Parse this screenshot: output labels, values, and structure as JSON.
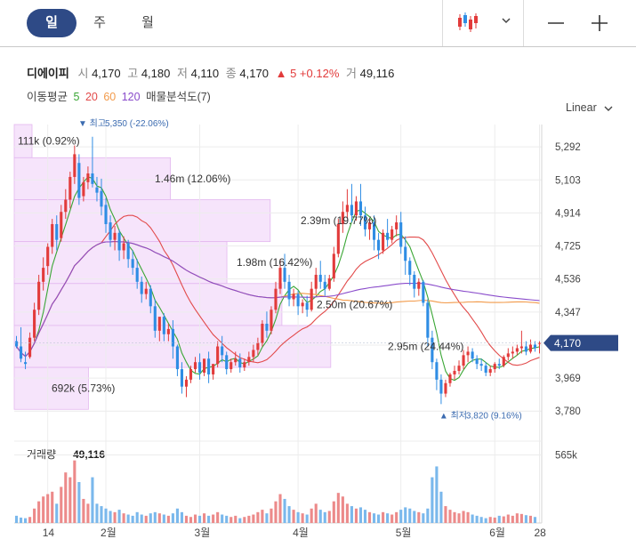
{
  "period_tabs": [
    {
      "label": "일",
      "active": true
    },
    {
      "label": "주",
      "active": false
    },
    {
      "label": "월",
      "active": false
    }
  ],
  "quote": {
    "name": "디에이피",
    "open_label": "시",
    "open": "4,170",
    "high_label": "고",
    "high": "4,180",
    "low_label": "저",
    "low": "4,110",
    "close_label": "종",
    "close": "4,170",
    "change_arrow": "▲",
    "change": "5",
    "change_pct": "+0.12%",
    "volume_label": "거",
    "volume": "49,116"
  },
  "indicators": {
    "ma_label": "이동평균",
    "ma_periods": [
      {
        "period": "5",
        "color": "#3aa635"
      },
      {
        "period": "20",
        "color": "#e24a4a"
      },
      {
        "period": "60",
        "color": "#f29a4a"
      },
      {
        "period": "120",
        "color": "#8a4ccb"
      }
    ],
    "volume_profile_label": "매물분석도(7)"
  },
  "scale_mode": "Linear",
  "colors": {
    "accent": "#2e4a86",
    "up": "#e23b3b",
    "down": "#2f8de4",
    "profile_fill": "#f6e4fb",
    "profile_stroke": "#e3b7ef",
    "vol_up": "#ec8a8a",
    "vol_down": "#7ab8ec"
  },
  "icons": {
    "chart_type": "candlestick-icon",
    "dropdown": "chevron-down-icon",
    "zoom_out": "minus-icon",
    "zoom_in": "plus-icon"
  },
  "chart_data": [
    {
      "type": "candlestick",
      "y_ticks": [
        "5,292",
        "5,103",
        "4,914",
        "4,725",
        "4,536",
        "4,347",
        "4,158",
        "3,969",
        "3,780"
      ],
      "ylim": [
        3720,
        5420
      ],
      "x_ticks": [
        "14",
        "2월",
        "3월",
        "4월",
        "5월",
        "6월",
        "28"
      ],
      "current_price": 4170,
      "current_price_label": "4,170",
      "max_marker": {
        "label": "▼ 최고",
        "value": "5,350 (-22.06%)",
        "price": 5350
      },
      "min_marker": {
        "label": "▲ 최저",
        "value": "3,820 (9.16%)",
        "price": 3820
      },
      "volume_profile": [
        {
          "label": "111k (0.92%)",
          "from": 5230,
          "to": 5420,
          "share": 0.92
        },
        {
          "label": "1.46m (12.06%)",
          "from": 4990,
          "to": 5230,
          "share": 12.06
        },
        {
          "label": "2.39m (19.77%)",
          "from": 4750,
          "to": 4990,
          "share": 19.77
        },
        {
          "label": "1.98m (16.42%)",
          "from": 4510,
          "to": 4750,
          "share": 16.42
        },
        {
          "label": "2.50m (20.67%)",
          "from": 4270,
          "to": 4510,
          "share": 20.67
        },
        {
          "label": "2.95m (24.44%)",
          "from": 4030,
          "to": 4270,
          "share": 24.44
        },
        {
          "label": "692k (5.73%)",
          "from": 3790,
          "to": 4030,
          "share": 5.73
        }
      ],
      "candles": [
        [
          4180,
          4210,
          4150,
          4140
        ],
        [
          4150,
          4260,
          4080,
          4060
        ],
        [
          4060,
          4120,
          4050,
          4020
        ],
        [
          4090,
          4230,
          4200,
          4080
        ],
        [
          4200,
          4400,
          4360,
          4180
        ],
        [
          4360,
          4560,
          4520,
          4330
        ],
        [
          4520,
          4660,
          4600,
          4470
        ],
        [
          4610,
          4740,
          4720,
          4560
        ],
        [
          4720,
          4880,
          4850,
          4680
        ],
        [
          4850,
          4900,
          4760,
          4700
        ],
        [
          4770,
          4960,
          4920,
          4750
        ],
        [
          4920,
          5050,
          4990,
          4880
        ],
        [
          4990,
          5150,
          5120,
          4940
        ],
        [
          5120,
          5300,
          5250,
          5080
        ],
        [
          5200,
          5250,
          5000,
          4960
        ],
        [
          5010,
          5120,
          5090,
          4980
        ],
        [
          5090,
          5180,
          5140,
          5050
        ],
        [
          5140,
          5350,
          5080,
          5060
        ],
        [
          5060,
          5120,
          5030,
          4980
        ],
        [
          5040,
          5110,
          4950,
          4900
        ],
        [
          4960,
          5000,
          4850,
          4800
        ],
        [
          4860,
          4900,
          4760,
          4720
        ],
        [
          4760,
          4840,
          4800,
          4700
        ],
        [
          4800,
          4820,
          4700,
          4640
        ],
        [
          4700,
          4780,
          4740,
          4650
        ],
        [
          4740,
          4760,
          4650,
          4600
        ],
        [
          4650,
          4700,
          4600,
          4560
        ],
        [
          4600,
          4650,
          4520,
          4480
        ],
        [
          4520,
          4550,
          4450,
          4400
        ],
        [
          4450,
          4520,
          4480,
          4420
        ],
        [
          4480,
          4500,
          4380,
          4340
        ],
        [
          4380,
          4420,
          4240,
          4200
        ],
        [
          4240,
          4300,
          4320,
          4180
        ],
        [
          4320,
          4340,
          4220,
          4180
        ],
        [
          4220,
          4280,
          4250,
          4180
        ],
        [
          4250,
          4300,
          4150,
          4080
        ],
        [
          4150,
          4160,
          4020,
          3980
        ],
        [
          4020,
          4060,
          3920,
          3880
        ],
        [
          3920,
          3980,
          3960,
          3860
        ],
        [
          3960,
          4040,
          4020,
          3940
        ],
        [
          4020,
          4090,
          4060,
          4000
        ],
        [
          4060,
          4110,
          4000,
          3960
        ],
        [
          4000,
          4040,
          4080,
          3980
        ],
        [
          4080,
          4120,
          3990,
          3940
        ],
        [
          3990,
          4020,
          4050,
          3960
        ],
        [
          4050,
          4180,
          4150,
          4030
        ],
        [
          4150,
          4210,
          4100,
          4060
        ],
        [
          4100,
          4120,
          4020,
          3990
        ],
        [
          4020,
          4080,
          4060,
          4000
        ],
        [
          4060,
          4120,
          4080,
          4040
        ],
        [
          4080,
          4110,
          4030,
          4000
        ],
        [
          4030,
          4080,
          4060,
          4010
        ],
        [
          4060,
          4120,
          4090,
          4040
        ],
        [
          4090,
          4160,
          4130,
          4060
        ],
        [
          4130,
          4200,
          4170,
          4100
        ],
        [
          4170,
          4300,
          4280,
          4150
        ],
        [
          4280,
          4350,
          4240,
          4200
        ],
        [
          4240,
          4380,
          4360,
          4220
        ],
        [
          4360,
          4520,
          4480,
          4340
        ],
        [
          4480,
          4650,
          4600,
          4450
        ],
        [
          4600,
          4680,
          4520,
          4480
        ],
        [
          4520,
          4560,
          4420,
          4380
        ],
        [
          4420,
          4480,
          4450,
          4380
        ],
        [
          4450,
          4470,
          4380,
          4330
        ],
        [
          4380,
          4420,
          4400,
          4340
        ],
        [
          4400,
          4440,
          4360,
          4320
        ],
        [
          4360,
          4520,
          4480,
          4350
        ],
        [
          4480,
          4600,
          4560,
          4450
        ],
        [
          4560,
          4640,
          4520,
          4480
        ],
        [
          4520,
          4560,
          4480,
          4440
        ],
        [
          4480,
          4560,
          4540,
          4470
        ],
        [
          4540,
          4720,
          4680,
          4520
        ],
        [
          4680,
          4880,
          4850,
          4660
        ],
        [
          4850,
          4980,
          4920,
          4800
        ],
        [
          4920,
          5050,
          4960,
          4880
        ],
        [
          4960,
          5080,
          4900,
          4860
        ],
        [
          4900,
          5010,
          4980,
          4870
        ],
        [
          4980,
          5080,
          4900,
          4840
        ],
        [
          4900,
          4950,
          4820,
          4780
        ],
        [
          4820,
          4880,
          4860,
          4760
        ],
        [
          4860,
          4900,
          4760,
          4700
        ],
        [
          4760,
          4800,
          4700,
          4650
        ],
        [
          4700,
          4820,
          4800,
          4680
        ],
        [
          4800,
          4880,
          4760,
          4720
        ],
        [
          4760,
          4840,
          4820,
          4740
        ],
        [
          4820,
          4900,
          4860,
          4780
        ],
        [
          4860,
          4920,
          4720,
          4680
        ],
        [
          4720,
          4780,
          4640,
          4560
        ],
        [
          4640,
          4660,
          4560,
          4500
        ],
        [
          4560,
          4580,
          4480,
          4430
        ],
        [
          4480,
          4540,
          4520,
          4440
        ],
        [
          4520,
          4530,
          4400,
          4380
        ],
        [
          4400,
          4420,
          4200,
          4150
        ],
        [
          4200,
          4240,
          4060,
          4020
        ],
        [
          4060,
          4080,
          3960,
          3900
        ],
        [
          3960,
          3990,
          3880,
          3820
        ],
        [
          3880,
          3960,
          3940,
          3860
        ],
        [
          3940,
          4000,
          3990,
          3920
        ],
        [
          3990,
          4040,
          4010,
          3960
        ],
        [
          4010,
          4070,
          4040,
          3990
        ],
        [
          4040,
          4130,
          4100,
          4020
        ],
        [
          4100,
          4150,
          4120,
          4060
        ],
        [
          4120,
          4140,
          4080,
          4060
        ],
        [
          4080,
          4100,
          4050,
          4020
        ],
        [
          4050,
          4080,
          4040,
          4010
        ],
        [
          4040,
          4060,
          4000,
          3980
        ],
        [
          4000,
          4040,
          4020,
          3980
        ],
        [
          4020,
          4060,
          4050,
          4000
        ],
        [
          4050,
          4080,
          4040,
          4020
        ],
        [
          4040,
          4100,
          4090,
          4030
        ],
        [
          4090,
          4140,
          4110,
          4070
        ],
        [
          4110,
          4150,
          4120,
          4080
        ],
        [
          4120,
          4160,
          4140,
          4100
        ],
        [
          4140,
          4240,
          4150,
          4110
        ],
        [
          4150,
          4180,
          4120,
          4100
        ],
        [
          4120,
          4190,
          4160,
          4110
        ],
        [
          4160,
          4180,
          4140,
          4120
        ],
        [
          4170,
          4180,
          4170,
          4110
        ]
      ],
      "volume_label": "거래량",
      "volume_value": "49,116",
      "volume_tick": "565k",
      "volume_max": 680000,
      "volumes": [
        60,
        45,
        40,
        50,
        120,
        180,
        220,
        240,
        260,
        160,
        300,
        420,
        380,
        520,
        340,
        200,
        160,
        380,
        160,
        140,
        120,
        100,
        90,
        110,
        80,
        70,
        60,
        90,
        70,
        60,
        80,
        90,
        80,
        70,
        60,
        80,
        120,
        90,
        60,
        50,
        70,
        60,
        80,
        60,
        70,
        90,
        70,
        60,
        50,
        60,
        40,
        50,
        60,
        70,
        90,
        110,
        80,
        120,
        180,
        240,
        200,
        140,
        110,
        90,
        80,
        70,
        120,
        160,
        110,
        90,
        100,
        180,
        250,
        220,
        160,
        140,
        120,
        130,
        110,
        90,
        80,
        70,
        90,
        80,
        70,
        90,
        110,
        130,
        120,
        100,
        90,
        80,
        120,
        380,
        470,
        260,
        140,
        110,
        90,
        80,
        100,
        90,
        70,
        60,
        50,
        40,
        50,
        45,
        60,
        55,
        70,
        60,
        80,
        75,
        65,
        60,
        50
      ]
    }
  ]
}
